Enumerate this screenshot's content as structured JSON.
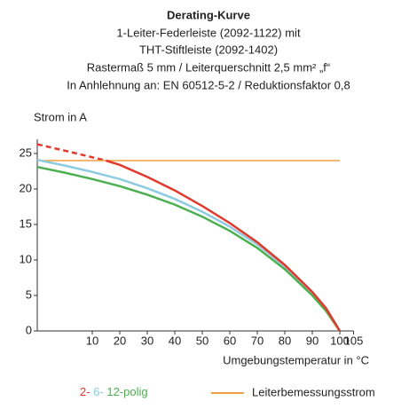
{
  "chart_data": {
    "type": "line",
    "title": "Derating-Kurve",
    "subtitle": [
      "1-Leiter-Federleiste (2092-1122) mit",
      "THT-Stiftleiste (2092-1402)",
      "Rastermaß 5 mm / Leiterquerschnitt 2,5 mm² „f“",
      "In Anhlehnung an: EN 60512-5-2 / Reduktionsfaktor 0,8"
    ],
    "y_label": "Strom in A",
    "x_label": "Umgebungstemperatur in °C",
    "xlim": [
      -10,
      105
    ],
    "ylim": [
      0,
      27
    ],
    "xticks": [
      10,
      20,
      30,
      40,
      50,
      60,
      70,
      80,
      90,
      100,
      105
    ],
    "yticks": [
      0,
      5,
      10,
      15,
      20,
      25
    ],
    "series": [
      {
        "name": "2-",
        "color": "#e2392d",
        "x": [
          15,
          20,
          30,
          40,
          50,
          60,
          70,
          80,
          90,
          95,
          100
        ],
        "values": [
          24,
          23.4,
          21.7,
          19.8,
          17.6,
          15.2,
          12.5,
          9.3,
          5.5,
          3.2,
          0
        ]
      },
      {
        "name": "6-",
        "color": "#8ccbe0",
        "x": [
          -10,
          0,
          10,
          20,
          30,
          40,
          50,
          60,
          70,
          80,
          90,
          95,
          100
        ],
        "values": [
          24.1,
          23.3,
          22.4,
          21.4,
          20.1,
          18.6,
          16.8,
          14.7,
          12.2,
          9.1,
          5.3,
          3.0,
          0
        ]
      },
      {
        "name": "12-polig",
        "color": "#4caf50",
        "x": [
          -10,
          0,
          10,
          20,
          30,
          40,
          50,
          60,
          70,
          80,
          90,
          95,
          100
        ],
        "values": [
          23.1,
          22.3,
          21.4,
          20.4,
          19.2,
          17.8,
          16.1,
          14.1,
          11.7,
          8.7,
          5.0,
          2.8,
          0
        ]
      },
      {
        "name": "Leiterbemessungsstrom",
        "color": "#f0a040",
        "x": [
          -10,
          100
        ],
        "values": [
          24,
          24
        ]
      }
    ],
    "extrapolated": {
      "series": 0,
      "x": [
        -10,
        0,
        15
      ],
      "values": [
        26.3,
        25.4,
        24
      ],
      "style": "dashed"
    }
  }
}
